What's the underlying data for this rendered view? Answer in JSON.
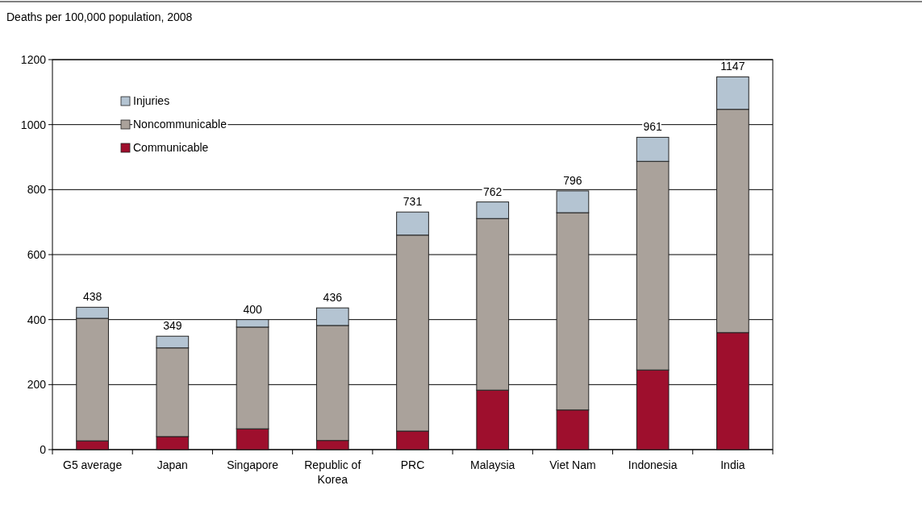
{
  "chart_data": {
    "type": "bar",
    "title": "Deaths per 100,000 population, 2008",
    "stacked": true,
    "categories": [
      "G5 average",
      "Japan",
      "Singapore",
      "Republic of Korea",
      "PRC",
      "Malaysia",
      "Viet Nam",
      "Indonesia",
      "India"
    ],
    "series": [
      {
        "name": "Communicable",
        "color": "#9e0f2d",
        "values": [
          27,
          40,
          64,
          28,
          57,
          183,
          122,
          245,
          360
        ]
      },
      {
        "name": "Noncommunicable",
        "color": "#aaa29b",
        "values": [
          377,
          273,
          313,
          354,
          603,
          528,
          607,
          642,
          687
        ]
      },
      {
        "name": "Injuries",
        "color": "#b4c4d2",
        "values": [
          34,
          36,
          23,
          54,
          71,
          51,
          67,
          74,
          100
        ]
      }
    ],
    "totals": [
      "438",
      "349",
      "400",
      "436",
      "731",
      "762",
      "796",
      "961",
      "1147"
    ],
    "ylim": [
      0,
      1200
    ],
    "yticks": [
      0,
      200,
      400,
      600,
      800,
      1000,
      1200
    ],
    "grid": "y",
    "legend": "top left"
  }
}
